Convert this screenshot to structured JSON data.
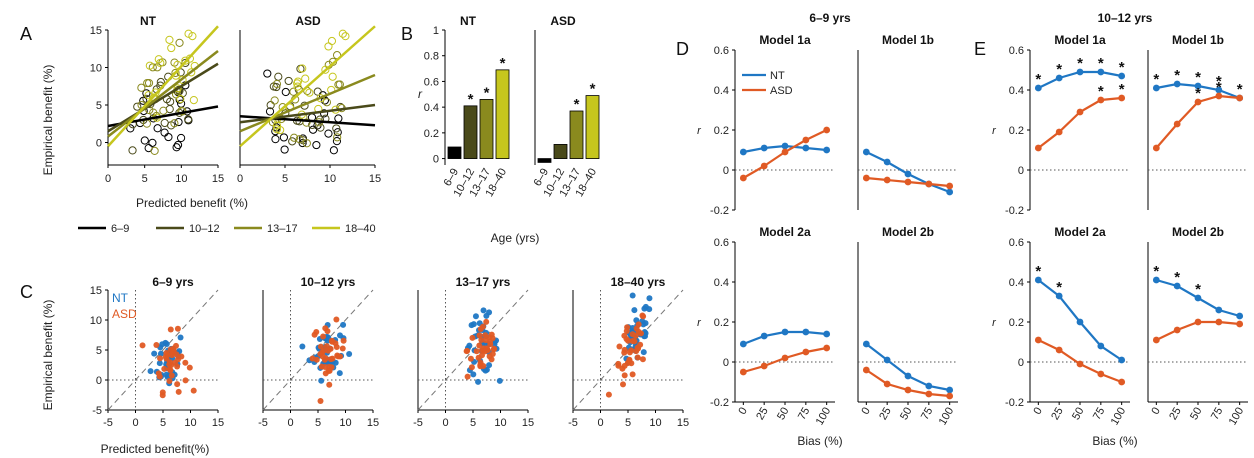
{
  "colors": {
    "NT": "#1f77c4",
    "ASD": "#e05a24",
    "age_6_9": "#000000",
    "age_10_12": "#4a4a1a",
    "age_13_17": "#8a8a1e",
    "age_18_40": "#c6c61e"
  },
  "panel_letters": [
    "A",
    "B",
    "C",
    "D",
    "E"
  ],
  "legend_age": [
    "6–9",
    "10–12",
    "13–17",
    "18–40"
  ],
  "legend_group": [
    "NT",
    "ASD"
  ],
  "chart_data": [
    {
      "panel": "A",
      "type": "scatter",
      "title_left": "NT",
      "title_right": "ASD",
      "xlabel": "Predicted benefit (%)",
      "ylabel": "Empirical benefit (%)",
      "xlim": [
        0,
        15
      ],
      "ylim": [
        -3,
        15
      ],
      "xticks": [
        "0",
        "5",
        "10",
        "15"
      ],
      "yticks": [
        "0",
        "5",
        "10",
        "15"
      ],
      "note": "open circles; fitted regression lines per age group",
      "lines_NT": [
        {
          "name": "6–9",
          "x": [
            0,
            15
          ],
          "y": [
            2.2,
            4.8
          ]
        },
        {
          "name": "10–12",
          "x": [
            0,
            15
          ],
          "y": [
            1.5,
            10.5
          ]
        },
        {
          "name": "13–17",
          "x": [
            0,
            15
          ],
          "y": [
            0.8,
            12.2
          ]
        },
        {
          "name": "18–40",
          "x": [
            0,
            15
          ],
          "y": [
            -0.5,
            15.5
          ]
        }
      ],
      "lines_ASD": [
        {
          "name": "6–9",
          "x": [
            0,
            15
          ],
          "y": [
            3.5,
            2.3
          ]
        },
        {
          "name": "10–12",
          "x": [
            0,
            15
          ],
          "y": [
            2.7,
            5.0
          ]
        },
        {
          "name": "13–17",
          "x": [
            0,
            15
          ],
          "y": [
            1.5,
            9.0
          ]
        },
        {
          "name": "18–40",
          "x": [
            0,
            15
          ],
          "y": [
            -0.5,
            15.5
          ]
        }
      ]
    },
    {
      "panel": "B",
      "type": "bar",
      "title_left": "NT",
      "title_right": "ASD",
      "xlabel": "Age (yrs)",
      "ylabel": "r",
      "ylim": [
        -0.05,
        1.0
      ],
      "yticks": [
        "0",
        "0.2",
        "0.4",
        "0.6",
        "0.8",
        "1"
      ],
      "categories": [
        "6–9",
        "10–12",
        "13–17",
        "18–40"
      ],
      "series": [
        {
          "name": "NT",
          "values": [
            0.09,
            0.41,
            0.46,
            0.69
          ],
          "significant": [
            false,
            true,
            true,
            true
          ]
        },
        {
          "name": "ASD",
          "values": [
            -0.03,
            0.11,
            0.37,
            0.49
          ],
          "significant": [
            false,
            false,
            true,
            true
          ]
        }
      ]
    },
    {
      "panel": "C",
      "type": "scatter",
      "xlabel": "Predicted benefit(%)",
      "ylabel": "Empirical benefit (%)",
      "xlim": [
        -5,
        15
      ],
      "ylim": [
        -5,
        15
      ],
      "xticks": [
        "-5",
        "0",
        "5",
        "10",
        "15"
      ],
      "yticks": [
        "-5",
        "0",
        "5",
        "10",
        "15"
      ],
      "subplot_titles": [
        "6–9 yrs",
        "10–12 yrs",
        "13–17 yrs",
        "18–40 yrs"
      ],
      "legend": [
        "NT",
        "ASD"
      ],
      "centers": [
        {
          "NT": [
            6.0,
            3.5
          ],
          "ASD": [
            6.5,
            3.0
          ]
        },
        {
          "NT": [
            6.5,
            5.0
          ],
          "ASD": [
            7.0,
            4.5
          ]
        },
        {
          "NT": [
            6.5,
            6.0
          ],
          "ASD": [
            7.0,
            5.0
          ]
        },
        {
          "NT": [
            6.5,
            7.0
          ],
          "ASD": [
            5.5,
            4.5
          ]
        }
      ]
    },
    {
      "panel": "D",
      "type": "line",
      "group_title": "6–9 yrs",
      "xlabel": "Bias (%)",
      "ylabel": "r",
      "x": [
        0,
        25,
        50,
        75,
        100
      ],
      "xticks": [
        "0",
        "25",
        "50",
        "75",
        "100"
      ],
      "ylim": [
        -0.2,
        0.6
      ],
      "yticks": [
        "-0.2",
        "0",
        "0.2",
        "0.4",
        "0.6"
      ],
      "subplots": [
        {
          "title": "Model 1a",
          "NT": [
            0.09,
            0.11,
            0.12,
            0.11,
            0.1
          ],
          "ASD": [
            -0.04,
            0.02,
            0.09,
            0.15,
            0.2
          ]
        },
        {
          "title": "Model 1b",
          "NT": [
            0.09,
            0.04,
            -0.02,
            -0.07,
            -0.11
          ],
          "ASD": [
            -0.04,
            -0.05,
            -0.06,
            -0.07,
            -0.08
          ]
        },
        {
          "title": "Model 2a",
          "NT": [
            0.09,
            0.13,
            0.15,
            0.15,
            0.14
          ],
          "ASD": [
            -0.05,
            -0.02,
            0.02,
            0.05,
            0.07
          ]
        },
        {
          "title": "Model 2b",
          "NT": [
            0.09,
            0.01,
            -0.07,
            -0.12,
            -0.14
          ],
          "ASD": [
            -0.04,
            -0.11,
            -0.14,
            -0.16,
            -0.17
          ]
        }
      ]
    },
    {
      "panel": "E",
      "type": "line",
      "group_title": "10–12 yrs",
      "xlabel": "Bias (%)",
      "ylabel": "r",
      "x": [
        0,
        25,
        50,
        75,
        100
      ],
      "xticks": [
        "0",
        "25",
        "50",
        "75",
        "100"
      ],
      "ylim": [
        -0.2,
        0.6
      ],
      "yticks": [
        "-0.2",
        "0",
        "0.2",
        "0.4",
        "0.6"
      ],
      "subplots": [
        {
          "title": "Model 1a",
          "NT": [
            0.41,
            0.46,
            0.49,
            0.49,
            0.47
          ],
          "ASD": [
            0.11,
            0.19,
            0.29,
            0.35,
            0.36
          ],
          "sig_NT": [
            true,
            true,
            true,
            true,
            true
          ],
          "sig_ASD": [
            false,
            false,
            false,
            true,
            true
          ]
        },
        {
          "title": "Model 1b",
          "NT": [
            0.41,
            0.43,
            0.42,
            0.4,
            0.36
          ],
          "ASD": [
            0.11,
            0.23,
            0.34,
            0.37,
            0.36
          ],
          "sig_NT": [
            true,
            true,
            true,
            true,
            true
          ],
          "sig_ASD": [
            false,
            false,
            true,
            true,
            false
          ]
        },
        {
          "title": "Model 2a",
          "NT": [
            0.41,
            0.33,
            0.2,
            0.08,
            0.01
          ],
          "ASD": [
            0.11,
            0.06,
            -0.01,
            -0.06,
            -0.1
          ],
          "sig_NT": [
            true,
            true,
            false,
            false,
            false
          ],
          "sig_ASD": [
            false,
            false,
            false,
            false,
            false
          ]
        },
        {
          "title": "Model 2b",
          "NT": [
            0.41,
            0.38,
            0.32,
            0.26,
            0.23
          ],
          "ASD": [
            0.11,
            0.16,
            0.2,
            0.2,
            0.19
          ],
          "sig_NT": [
            true,
            true,
            true,
            false,
            false
          ],
          "sig_ASD": [
            false,
            false,
            false,
            false,
            false
          ]
        }
      ]
    }
  ]
}
